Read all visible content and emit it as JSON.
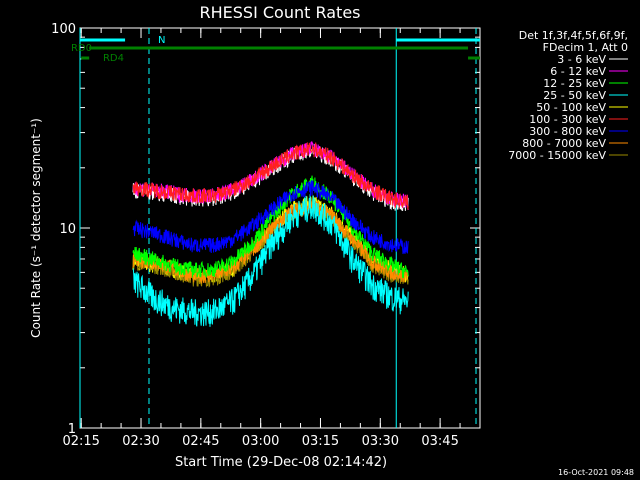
{
  "chart_data": {
    "type": "line",
    "title": "RHESSI Count Rates",
    "xlabel": "Start Time (29-Dec-08 02:14:42)",
    "ylabel": "Count Rate (s⁻¹ detector segment⁻¹)",
    "y_scale": "log",
    "ylim": [
      1,
      100
    ],
    "xlim": [
      "02:14:42",
      "03:55:00"
    ],
    "x_ticks": [
      "02:15",
      "02:30",
      "02:45",
      "03:00",
      "03:15",
      "03:30",
      "03:45"
    ],
    "y_ticks": [
      "1",
      "10",
      "100"
    ],
    "legend": {
      "placement": "right",
      "header": [
        "Det 1f,3f,4f,5f,6f,9f,",
        "FDecim 1, Att 0"
      ]
    },
    "x": [
      "02:28",
      "02:33",
      "02:38",
      "02:43",
      "02:48",
      "02:53",
      "02:58",
      "03:03",
      "03:08",
      "03:13",
      "03:18",
      "03:23",
      "03:28",
      "03:33",
      "03:37"
    ],
    "series": [
      {
        "name": "3 - 6 keV",
        "color": "#ffffff",
        "values": [
          15.5,
          15.0,
          14.5,
          14.0,
          14.0,
          15.0,
          17.0,
          20.0,
          23.0,
          24.5,
          22.0,
          18.0,
          15.0,
          13.5,
          13.0
        ]
      },
      {
        "name": "6 - 12 keV",
        "color": "#ff00ff",
        "values": [
          16.0,
          15.5,
          15.0,
          14.5,
          14.5,
          15.5,
          17.5,
          20.5,
          23.5,
          25.0,
          22.5,
          18.5,
          15.5,
          14.0,
          13.5
        ]
      },
      {
        "name": "12 - 25 keV",
        "color": "#00ff00",
        "values": [
          7.5,
          7.0,
          6.5,
          6.2,
          6.2,
          6.8,
          8.5,
          11.5,
          15.0,
          17.0,
          14.0,
          10.0,
          7.5,
          6.5,
          6.0
        ]
      },
      {
        "name": "25 - 50 keV",
        "color": "#00ffff",
        "values": [
          5.5,
          4.5,
          4.0,
          3.8,
          3.8,
          4.3,
          5.8,
          8.5,
          11.5,
          13.0,
          10.5,
          7.0,
          5.2,
          4.5,
          4.3
        ]
      },
      {
        "name": "50 - 100 keV",
        "color": "#ffff00",
        "values": [
          6.8,
          6.5,
          6.2,
          5.8,
          5.8,
          6.3,
          7.8,
          10.0,
          12.5,
          13.5,
          11.8,
          9.0,
          7.0,
          6.2,
          5.8
        ]
      },
      {
        "name": "100 - 300 keV",
        "color": "#ff2020",
        "values": [
          16.0,
          15.5,
          15.0,
          14.5,
          14.5,
          15.5,
          17.5,
          20.5,
          23.5,
          25.0,
          22.5,
          18.5,
          15.5,
          14.0,
          13.5
        ]
      },
      {
        "name": "300 - 800 keV",
        "color": "#0000ff",
        "values": [
          10.0,
          9.5,
          8.8,
          8.2,
          8.2,
          8.8,
          10.3,
          12.5,
          15.0,
          16.0,
          14.0,
          11.0,
          9.0,
          8.3,
          8.0
        ]
      },
      {
        "name": "800 - 7000 keV",
        "color": "#ff8c00",
        "values": [
          7.0,
          6.8,
          6.3,
          5.8,
          5.8,
          6.3,
          7.8,
          10.0,
          12.3,
          13.0,
          11.5,
          8.8,
          6.8,
          6.0,
          5.8
        ]
      },
      {
        "name": "7000 - 15000 keV",
        "color": "#9a8a00",
        "values": [
          6.8,
          6.5,
          6.1,
          5.6,
          5.6,
          6.1,
          7.6,
          9.8,
          12.0,
          12.8,
          11.2,
          8.6,
          6.6,
          5.8,
          5.6
        ]
      }
    ],
    "attenuator_state_bars": [
      {
        "label": "N",
        "color": "#00ffff",
        "ranges": [
          [
            "02:14:42",
            "02:26:00"
          ],
          [
            "03:34:00",
            "03:55:00"
          ]
        ]
      },
      {
        "label": "RD0",
        "color": "#008000",
        "ranges": [
          [
            "02:17:00",
            "03:52:00"
          ]
        ]
      },
      {
        "label": "RD4",
        "color": "#008000",
        "ranges": [
          [
            "02:15:00",
            "02:17:00"
          ],
          [
            "03:52:00",
            "03:55:00"
          ]
        ]
      }
    ],
    "vertical_markers": [
      {
        "time": "02:14:42",
        "color": "#00ffff",
        "style": "solid"
      },
      {
        "time": "02:32:00",
        "color": "#00ffff",
        "style": "dashed"
      },
      {
        "time": "03:34:00",
        "color": "#00ffff",
        "style": "solid"
      },
      {
        "time": "03:54:00",
        "color": "#00ffff",
        "style": "dashed"
      }
    ]
  },
  "timestamp": "16-Oct-2021 09:48"
}
